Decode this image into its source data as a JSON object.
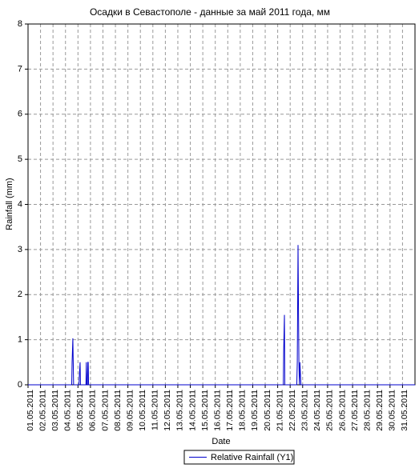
{
  "chart_data": {
    "type": "line",
    "title": "Осадки в Севастополе - данные за май 2011 года, мм",
    "y_label": "Rainfall (mm)",
    "x_label": "Date",
    "x": [
      1,
      4.5,
      4.53,
      4.59,
      4.62,
      4.65,
      5.08,
      5.12,
      5.17,
      5.2,
      5.64,
      5.67,
      5.7,
      5.76,
      5.79,
      5.82,
      5.85,
      21.45,
      21.48,
      21.54,
      21.57,
      22.53,
      22.57,
      22.63,
      22.67,
      22.7,
      22.74,
      22.78,
      22.82,
      22.86,
      32
    ],
    "series": [
      {
        "name": "Relative Rainfall (Y1)",
        "color": "#0000cc",
        "values": [
          0,
          0,
          0.5,
          1.03,
          0.5,
          0,
          0,
          0.25,
          0.5,
          0,
          0,
          0.5,
          0,
          0,
          0.5,
          0.5,
          0,
          0,
          0.75,
          1.55,
          0,
          0,
          0.5,
          3.1,
          1.55,
          0.5,
          0,
          0.5,
          0.25,
          0,
          0
        ]
      }
    ],
    "xlim": [
      1,
      32
    ],
    "xticks": [
      {
        "value": 1,
        "label": "01.05.2011"
      },
      {
        "value": 2,
        "label": "02.05.2011"
      },
      {
        "value": 3,
        "label": "03.05.2011"
      },
      {
        "value": 4,
        "label": "04.05.2011"
      },
      {
        "value": 5,
        "label": "05.05.2011"
      },
      {
        "value": 6,
        "label": "06.05.2011"
      },
      {
        "value": 7,
        "label": "07.05.2011"
      },
      {
        "value": 8,
        "label": "08.05.2011"
      },
      {
        "value": 9,
        "label": "09.05.2011"
      },
      {
        "value": 10,
        "label": "10.05.2011"
      },
      {
        "value": 11,
        "label": "11.05.2011"
      },
      {
        "value": 12,
        "label": "12.05.2011"
      },
      {
        "value": 13,
        "label": "13.05.2011"
      },
      {
        "value": 14,
        "label": "14.05.2011"
      },
      {
        "value": 15,
        "label": "15.05.2011"
      },
      {
        "value": 16,
        "label": "16.05.2011"
      },
      {
        "value": 17,
        "label": "17.05.2011"
      },
      {
        "value": 18,
        "label": "18.05.2011"
      },
      {
        "value": 19,
        "label": "19.05.2011"
      },
      {
        "value": 20,
        "label": "20.05.2011"
      },
      {
        "value": 21,
        "label": "21.05.2011"
      },
      {
        "value": 22,
        "label": "22.05.2011"
      },
      {
        "value": 23,
        "label": "23.05.2011"
      },
      {
        "value": 24,
        "label": "24.05.2011"
      },
      {
        "value": 25,
        "label": "25.05.2011"
      },
      {
        "value": 26,
        "label": "26.05.2011"
      },
      {
        "value": 27,
        "label": "27.05.2011"
      },
      {
        "value": 28,
        "label": "28.05.2011"
      },
      {
        "value": 29,
        "label": "29.05.2011"
      },
      {
        "value": 30,
        "label": "30.05.2011"
      },
      {
        "value": 31,
        "label": "31.05.2011"
      }
    ],
    "ylim": [
      0,
      8
    ],
    "yticks": [
      0,
      1,
      2,
      3,
      4,
      5,
      6,
      7,
      8
    ],
    "grid": true
  }
}
